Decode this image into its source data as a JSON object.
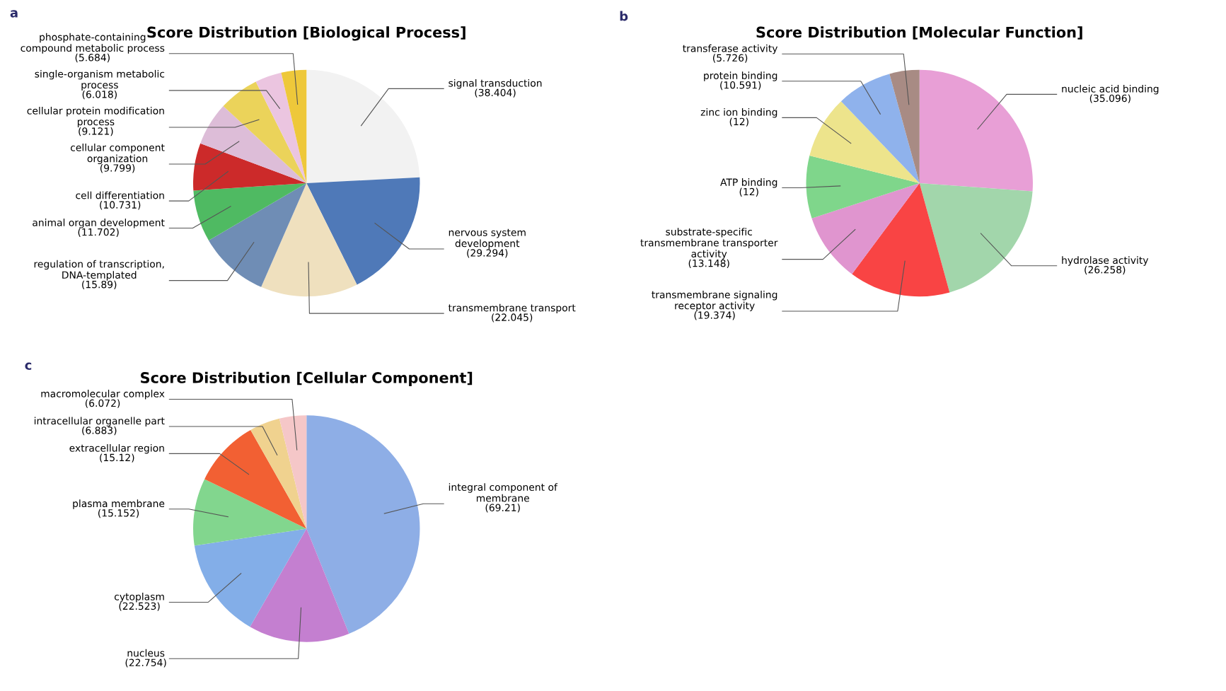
{
  "chart_data": [
    {
      "type": "pie",
      "title": "Score Distribution [Biological Process]",
      "annotations": [
        "a"
      ],
      "categories": [
        "signal transduction",
        "nervous system\ndevelopment",
        "transmembrane transport",
        "regulation of transcription,\nDNA-templated",
        "animal organ development",
        "cell differentiation",
        "cellular component\norganization",
        "cellular protein modification\nprocess",
        "single-organism metabolic\nprocess",
        "phosphate-containing\ncompound metabolic process"
      ],
      "values": [
        38.404,
        29.294,
        22.045,
        15.89,
        11.702,
        10.731,
        9.799,
        9.121,
        6.018,
        5.684
      ],
      "value_labels": [
        "(38.404)",
        "(29.294)",
        "(22.045)",
        "(15.89)",
        "(11.702)",
        "(10.731)",
        "(9.799)",
        "(9.121)",
        "(6.018)",
        "(5.684)"
      ],
      "colors": [
        "#f2f2f2",
        "#4f79b8",
        "#efe0be",
        "#6f8db5",
        "#4fba62",
        "#cc2a2a",
        "#ddbdd8",
        "#ebd35a",
        "#ebc5e0",
        "#eec83a"
      ]
    },
    {
      "type": "pie",
      "title": "Score Distribution [Molecular Function]",
      "annotations": [
        "b"
      ],
      "categories": [
        "nucleic acid binding",
        "hydrolase activity",
        "transmembrane signaling\nreceptor activity",
        "substrate-specific\ntransmembrane transporter\nactivity",
        "ATP binding",
        "zinc ion binding",
        "protein binding",
        "transferase activity"
      ],
      "values": [
        35.096,
        26.258,
        19.374,
        13.148,
        12,
        12,
        10.591,
        5.726
      ],
      "value_labels": [
        "(35.096)",
        "(26.258)",
        "(19.374)",
        "(13.148)",
        "(12)",
        "(12)",
        "(10.591)",
        "(5.726)"
      ],
      "colors": [
        "#e89fd6",
        "#a2d6ab",
        "#f94444",
        "#e095cf",
        "#7fd68b",
        "#ede48c",
        "#8fb2ec",
        "#a88b84"
      ]
    },
    {
      "type": "pie",
      "title": "Score Distribution [Cellular Component]",
      "annotations": [
        "c"
      ],
      "categories": [
        "integral component of\nmembrane",
        "nucleus",
        "cytoplasm",
        "plasma membrane",
        "extracellular region",
        "intracellular organelle part",
        "macromolecular complex"
      ],
      "values": [
        69.21,
        22.754,
        22.523,
        15.152,
        15.12,
        6.883,
        6.072
      ],
      "value_labels": [
        "(69.21)",
        "(22.754)",
        "(22.523)",
        "(15.152)",
        "(15.12)",
        "(6.883)",
        "(6.072)"
      ],
      "colors": [
        "#8eaee6",
        "#c47fd0",
        "#83aee8",
        "#82d68e",
        "#f26033",
        "#f0d28f",
        "#f5c7c8"
      ]
    }
  ]
}
